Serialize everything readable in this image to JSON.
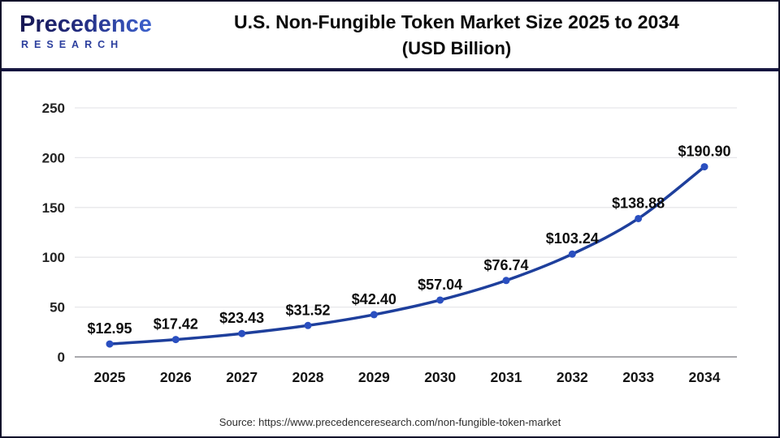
{
  "header": {
    "logo": {
      "name": "Precedence",
      "subtitle": "RESEARCH"
    },
    "title_line1": "U.S. Non-Fungible Token Market Size 2025 to 2034",
    "title_line2": "(USD Billion)"
  },
  "footer": {
    "source": "Source: https://www.precedenceresearch.com/non-fungible-token-market"
  },
  "chart_data": {
    "type": "line",
    "title": "U.S. Non-Fungible Token Market Size 2025 to 2034 (USD Billion)",
    "categories": [
      "2025",
      "2026",
      "2027",
      "2028",
      "2029",
      "2030",
      "2031",
      "2032",
      "2033",
      "2034"
    ],
    "values": [
      12.95,
      17.42,
      23.43,
      31.52,
      42.4,
      57.04,
      76.74,
      103.24,
      138.88,
      190.9
    ],
    "data_labels": [
      "$12.95",
      "$17.42",
      "$23.43",
      "$31.52",
      "$42.40",
      "$57.04",
      "$76.74",
      "$103.24",
      "$138.88",
      "$190.90"
    ],
    "xlabel": "",
    "ylabel": "",
    "ylim": [
      0,
      250
    ],
    "yticks": [
      0,
      50,
      100,
      150,
      200,
      250
    ],
    "grid": "horizontal",
    "legend_position": "none",
    "line_color": "#1e3f9c",
    "marker_color": "#2a4fc0",
    "gridline_color": "#e7e7ea",
    "axis_line_color": "#a9a9ad",
    "tick_label_color": "#232323",
    "data_label_color": "#0d0d0d"
  }
}
